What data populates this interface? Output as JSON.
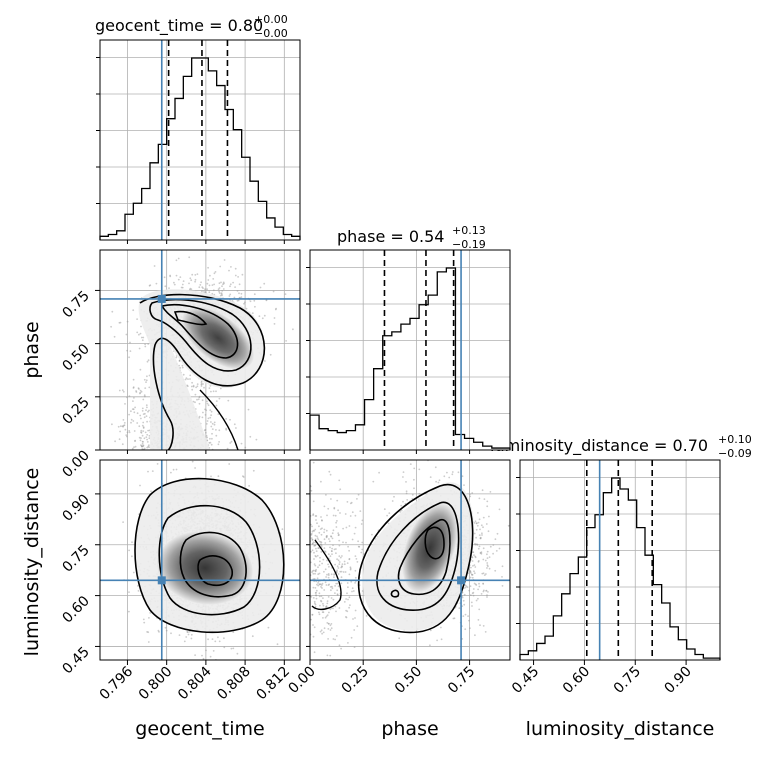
{
  "chart_data": {
    "type": "corner",
    "parameters": [
      "geocent_time",
      "phase",
      "luminosity_distance"
    ],
    "truths": {
      "geocent_time": 0.7995,
      "phase": 0.71,
      "luminosity_distance": 0.645
    },
    "titles": [
      {
        "param": "geocent_time",
        "prefix": "geocent_time = 0.80",
        "plus": "+0.00",
        "minus": "−0.00"
      },
      {
        "param": "phase",
        "prefix": "phase = 0.54",
        "plus": "+0.13",
        "minus": "−0.19"
      },
      {
        "param": "luminosity_distance",
        "prefix": "luminosity_distance = 0.70",
        "plus": "+0.10",
        "minus": "−0.09"
      }
    ],
    "axes": {
      "geocent_time": {
        "label": "geocent_time",
        "range": [
          0.7932,
          0.8136
        ],
        "ticks": [
          0.796,
          0.8,
          0.804,
          0.808,
          0.812
        ],
        "tick_labels": [
          "0.796",
          "0.800",
          "0.804",
          "0.808",
          "0.812"
        ]
      },
      "phase": {
        "label": "phase",
        "range": [
          0.0,
          0.94
        ],
        "ticks": [
          0.0,
          0.25,
          0.5,
          0.75
        ],
        "tick_labels": [
          "0.00",
          "0.25",
          "0.50",
          "0.75"
        ]
      },
      "luminosity_distance": {
        "label": "luminosity_distance",
        "range": [
          0.41,
          1.0
        ],
        "ticks": [
          0.45,
          0.6,
          0.75,
          0.9
        ],
        "tick_labels": [
          "0.45",
          "0.60",
          "0.75",
          "0.90"
        ]
      }
    },
    "quantiles": {
      "geocent_time": [
        0.8002,
        0.8036,
        0.8062
      ],
      "phase": [
        0.35,
        0.545,
        0.675
      ],
      "luminosity_distance": [
        0.607,
        0.7,
        0.8
      ]
    },
    "histograms": {
      "geocent_time": {
        "edges_range": [
          0.7932,
          0.8136
        ],
        "counts": [
          2,
          3,
          5,
          14,
          20,
          28,
          42,
          52,
          66,
          77,
          89,
          99,
          99,
          92,
          84,
          71,
          60,
          45,
          32,
          21,
          12,
          7,
          3,
          2
        ]
      },
      "phase": {
        "edges_range": [
          0.0,
          0.94
        ],
        "counts": [
          18,
          11,
          10,
          9,
          10,
          13,
          26,
          42,
          59,
          61,
          65,
          68,
          75,
          80,
          92,
          94,
          8,
          6,
          4,
          2,
          1,
          1
        ]
      },
      "luminosity_distance": {
        "edges_range": [
          0.41,
          1.0
        ],
        "counts": [
          3,
          5,
          9,
          13,
          24,
          36,
          47,
          56,
          72,
          79,
          91,
          99,
          93,
          87,
          72,
          57,
          41,
          31,
          18,
          11,
          6,
          3,
          1,
          1
        ]
      }
    },
    "grid": true
  }
}
